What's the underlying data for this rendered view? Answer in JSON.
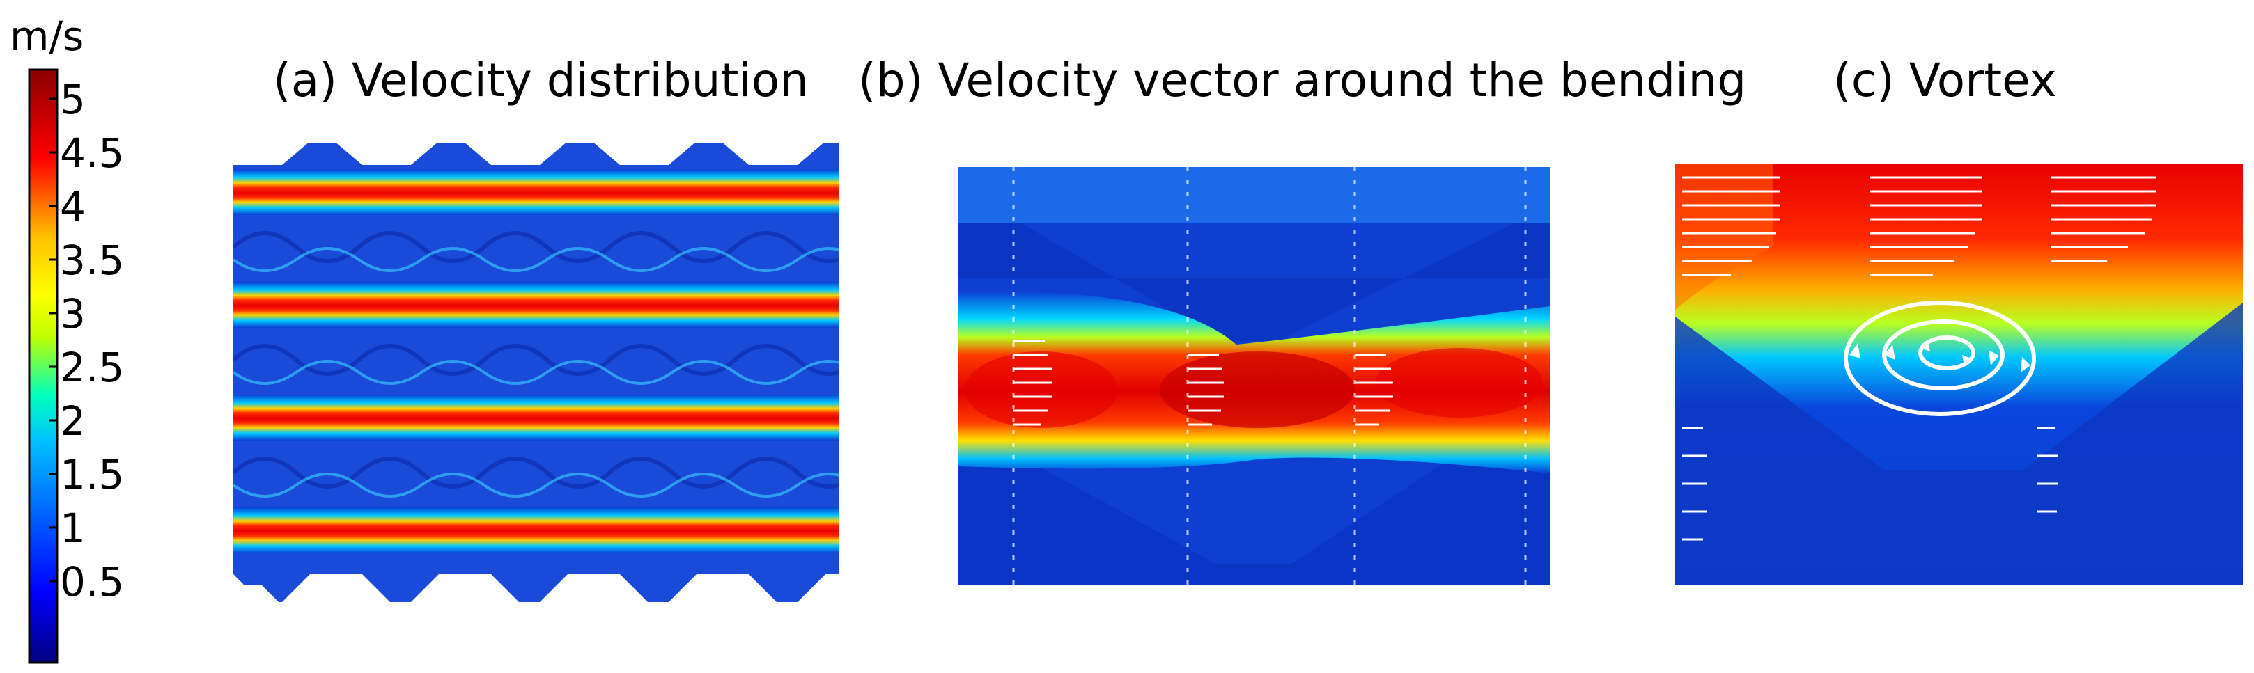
{
  "colorbar": {
    "unit": "m/s",
    "ticks": [
      "5",
      "4.5",
      "4",
      "3.5",
      "3",
      "2.5",
      "2",
      "1.5",
      "1",
      "0.5"
    ],
    "colormap": [
      "#00007f",
      "#0000ff",
      "#00bfff",
      "#00ffbf",
      "#bfff00",
      "#ffff00",
      "#ffbf00",
      "#ff0000",
      "#8b0000"
    ]
  },
  "panels": [
    {
      "id": "a",
      "title": "(a) Velocity distribution"
    },
    {
      "id": "b",
      "title": "(b) Velocity vector around the bending"
    },
    {
      "id": "c",
      "title": "(c) Vortex"
    }
  ],
  "colors": {
    "vector": "#ffffff",
    "low": "#0a3fd6",
    "high": "#ff2000"
  }
}
